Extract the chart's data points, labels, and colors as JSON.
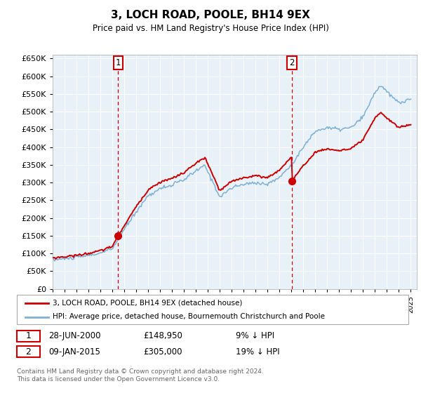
{
  "title": "3, LOCH ROAD, POOLE, BH14 9EX",
  "subtitle": "Price paid vs. HM Land Registry's House Price Index (HPI)",
  "ylim": [
    0,
    660000
  ],
  "ytick_values": [
    0,
    50000,
    100000,
    150000,
    200000,
    250000,
    300000,
    350000,
    400000,
    450000,
    500000,
    550000,
    600000,
    650000
  ],
  "sale1_date": 2000.49,
  "sale1_price": 148950,
  "sale2_date": 2015.03,
  "sale2_price": 305000,
  "hpi_color": "#7eb0d5",
  "price_color": "#cc0000",
  "vline_color": "#cc0000",
  "background_color": "#e8f0f8",
  "grid_color": "#c8d8e8",
  "legend_label_price": "3, LOCH ROAD, POOLE, BH14 9EX (detached house)",
  "legend_label_hpi": "HPI: Average price, detached house, Bournemouth Christchurch and Poole",
  "footer": "Contains HM Land Registry data © Crown copyright and database right 2024.\nThis data is licensed under the Open Government Licence v3.0."
}
